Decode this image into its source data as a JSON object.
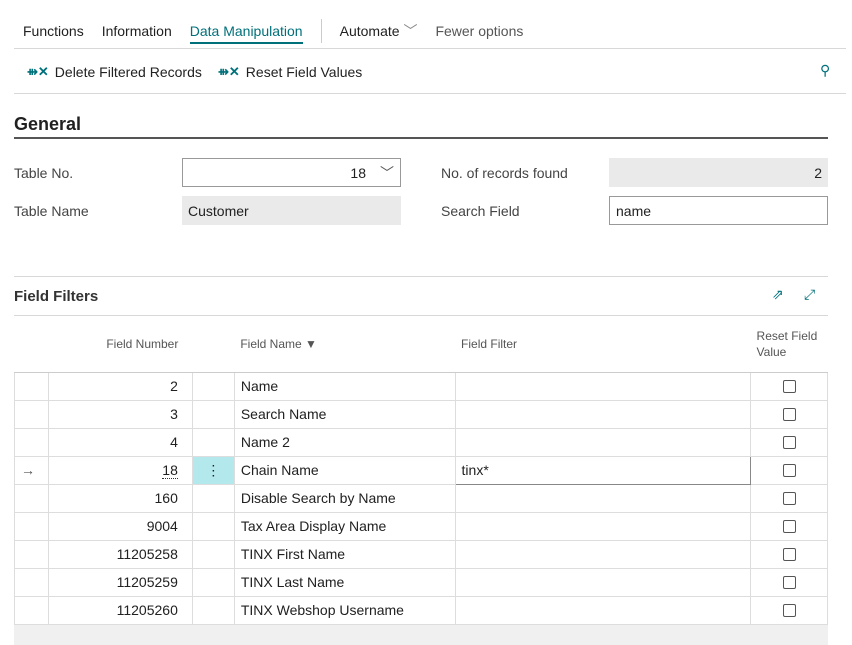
{
  "nav": {
    "items": [
      "Functions",
      "Information",
      "Data Manipulation"
    ],
    "automate": "Automate",
    "fewer": "Fewer options"
  },
  "actions": {
    "delete": "Delete Filtered Records",
    "reset": "Reset Field Values"
  },
  "general": {
    "title": "General",
    "table_no_label": "Table No.",
    "table_no": "18",
    "table_name_label": "Table Name",
    "table_name": "Customer",
    "records_label": "No. of records found",
    "records": "2",
    "search_label": "Search Field",
    "search": "name"
  },
  "filters": {
    "title": "Field Filters",
    "headers": {
      "number": "Field Number",
      "name": "Field Name",
      "filter": "Field Filter",
      "reset": "Reset Field Value"
    },
    "rows": [
      {
        "number": "2",
        "name": "Name",
        "filter": ""
      },
      {
        "number": "3",
        "name": "Search Name",
        "filter": ""
      },
      {
        "number": "4",
        "name": "Name 2",
        "filter": ""
      },
      {
        "number": "18",
        "name": "Chain Name",
        "filter": "tinx*",
        "selected": true
      },
      {
        "number": "160",
        "name": "Disable Search by Name",
        "filter": ""
      },
      {
        "number": "9004",
        "name": "Tax Area Display Name",
        "filter": ""
      },
      {
        "number": "11205258",
        "name": "TINX First Name",
        "filter": ""
      },
      {
        "number": "11205259",
        "name": "TINX Last Name",
        "filter": ""
      },
      {
        "number": "11205260",
        "name": "TINX Webshop Username",
        "filter": ""
      }
    ]
  },
  "colors": {
    "accent": "#00707a",
    "selected_cell": "#b3e8ec",
    "readonly": "#eaeaea"
  }
}
